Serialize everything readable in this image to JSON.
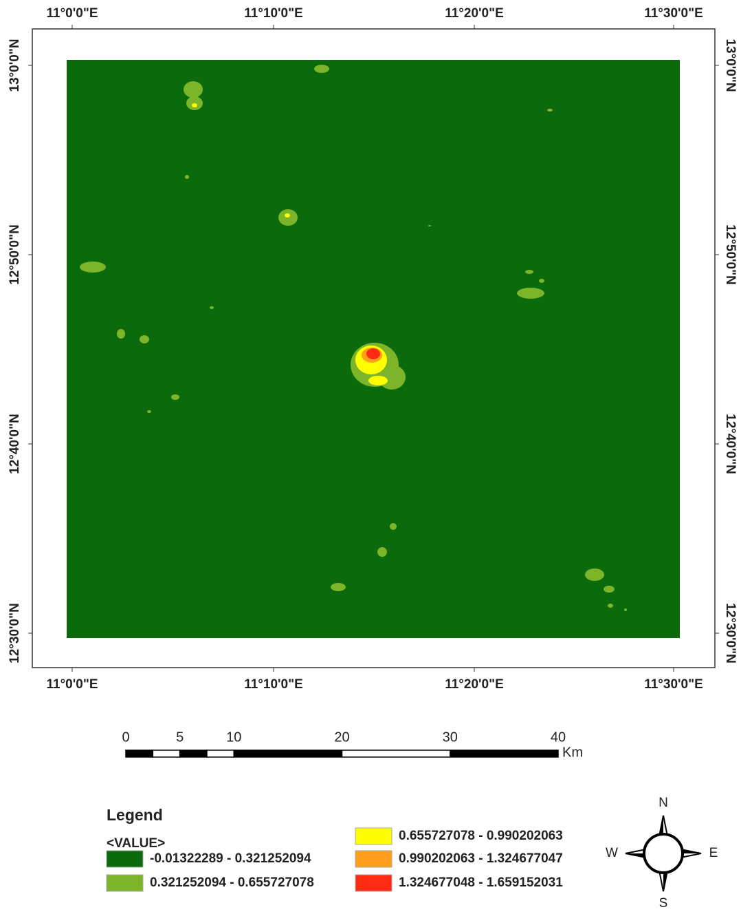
{
  "map": {
    "top_labels": [
      "11°0'0\"E",
      "11°10'0\"E",
      "11°20'0\"E",
      "11°30'0\"E"
    ],
    "bottom_labels": [
      "11°0'0\"E",
      "11°10'0\"E",
      "11°20'0\"E",
      "11°30'0\"E"
    ],
    "left_labels": [
      "13°0'0\"N",
      "12°50'0\"N",
      "12°40'0\"N",
      "12°30'0\"N"
    ],
    "right_labels": [
      "13°0'0\"N",
      "12°50'0\"N",
      "12°40'0\"N",
      "12°30'0\"N"
    ]
  },
  "scale_bar": {
    "ticks": [
      0,
      5,
      10,
      20,
      30,
      40
    ],
    "unit": "Km"
  },
  "legend": {
    "title": "Legend",
    "field": "<VALUE>",
    "classes": [
      {
        "label": "-0.01322289 - 0.321252094",
        "color": "#0b6a0b"
      },
      {
        "label": "0.321252094 - 0.655727078",
        "color": "#7db52a"
      },
      {
        "label": "0.655727078 - 0.990202063",
        "color": "#ffff00"
      },
      {
        "label": "0.990202063 - 1.324677047",
        "color": "#ff9f1c"
      },
      {
        "label": "1.324677048 - 1.659152031",
        "color": "#ff2a14"
      }
    ]
  },
  "compass": {
    "n": "N",
    "s": "S",
    "e": "E",
    "w": "W"
  }
}
